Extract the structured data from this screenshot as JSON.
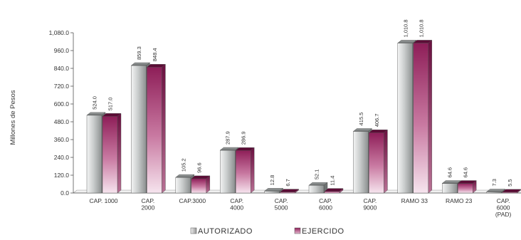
{
  "chart_data": {
    "type": "bar",
    "title": "",
    "ylabel": "Millones de Pesos",
    "xlabel": "",
    "ylim": [
      0,
      1080
    ],
    "yticks": [
      0,
      120,
      240,
      360,
      480,
      600,
      720,
      840,
      960,
      1080
    ],
    "ytick_labels": [
      "0.0",
      "120.0",
      "240.0",
      "360.0",
      "480.0",
      "600.0",
      "720.0",
      "840.0",
      "960.0",
      "1,080.0"
    ],
    "categories": [
      [
        "CAP. 1000"
      ],
      [
        "CAP.",
        "2000"
      ],
      [
        "CAP.3000"
      ],
      [
        "CAP.",
        "4000"
      ],
      [
        "CAP.",
        "5000"
      ],
      [
        "CAP.",
        "6000"
      ],
      [
        "CAP.",
        "9000"
      ],
      [
        "RAMO 33"
      ],
      [
        "RAMO 23"
      ],
      [
        "CAP.",
        "6000",
        "(PAD)"
      ]
    ],
    "series": [
      {
        "name": "AUTORIZADO",
        "color": "#b8bcbc",
        "values": [
          524.0,
          859.3,
          105.2,
          287.9,
          12.8,
          52.1,
          415.5,
          1010.8,
          64.6,
          7.3
        ],
        "labels": [
          "524.0",
          "859.3",
          "105.2",
          "287.9",
          "12.8",
          "52.1",
          "415.5",
          "1,010.8",
          "64.6",
          "7.3"
        ]
      },
      {
        "name": "EJERCIDO",
        "color": "#9c2f66",
        "values": [
          517.0,
          848.4,
          96.6,
          286.9,
          6.7,
          11.4,
          406.7,
          1010.8,
          64.6,
          5.5
        ],
        "labels": [
          "517.0",
          "848.4",
          "96.6",
          "286.9",
          "6.7",
          "11.4",
          "406.7",
          "1,010.8",
          "64.6",
          "5.5"
        ]
      }
    ],
    "grid": false,
    "legend_position": "bottom"
  }
}
